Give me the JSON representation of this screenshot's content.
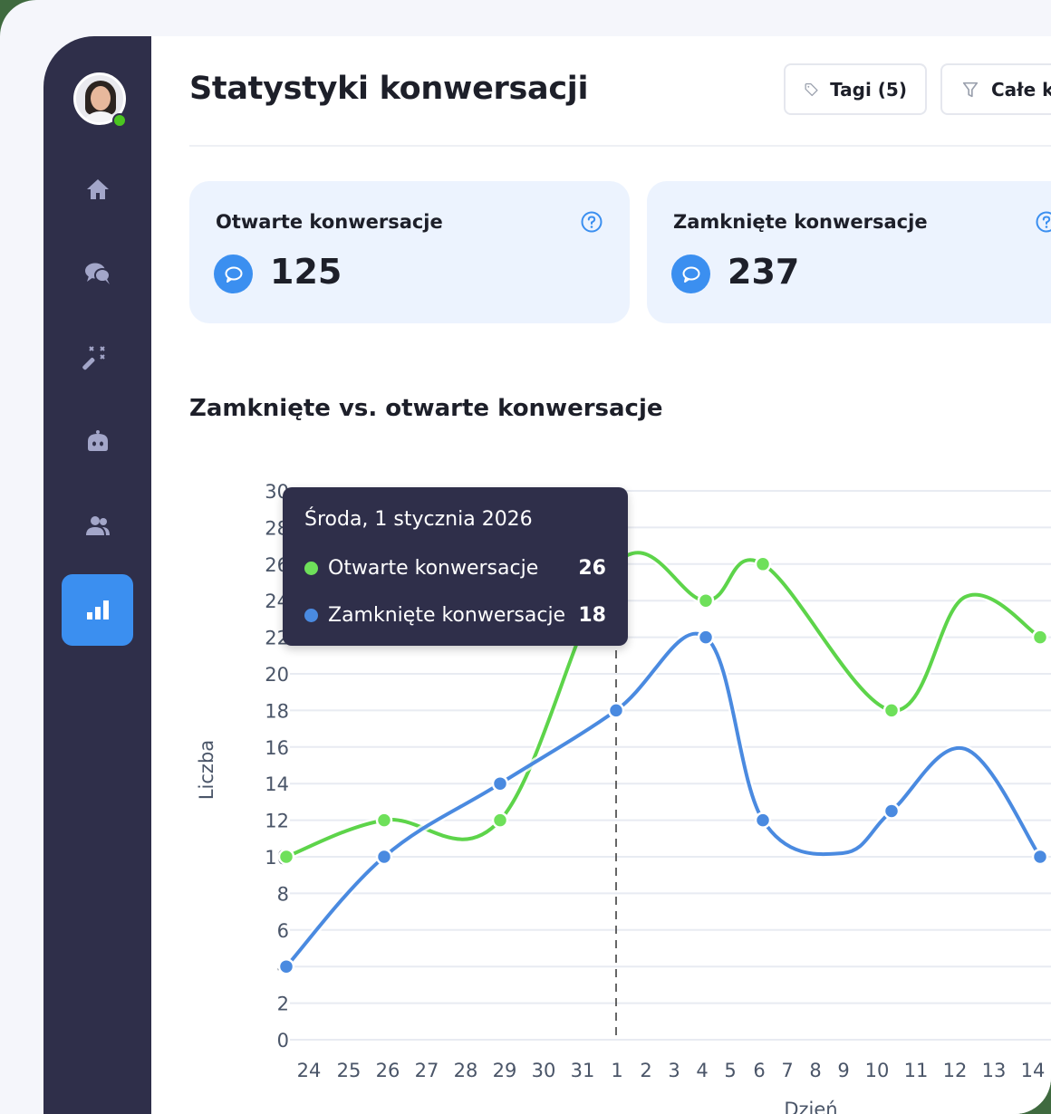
{
  "sidebar": {
    "status": "online",
    "items": [
      {
        "name": "home",
        "icon": "home-icon",
        "active": false
      },
      {
        "name": "conversations",
        "icon": "chat-bubbles-icon",
        "active": false
      },
      {
        "name": "automation",
        "icon": "magic-wand-icon",
        "active": false
      },
      {
        "name": "bot",
        "icon": "bot-icon",
        "active": false
      },
      {
        "name": "users",
        "icon": "users-icon",
        "active": false
      },
      {
        "name": "statistics",
        "icon": "bar-chart-icon",
        "active": true
      }
    ]
  },
  "header": {
    "title": "Statystyki konwersacji",
    "tags_button": "Tagi (5)",
    "filter_button": "Całe k"
  },
  "cards": [
    {
      "title": "Otwarte konwersacje",
      "value": "125"
    },
    {
      "title": "Zamknięte konwersacje",
      "value": "237"
    }
  ],
  "tooltip": {
    "date": "Środa, 1 stycznia 2026",
    "rows": [
      {
        "label": "Otwarte konwersacje",
        "value": "26",
        "color": "#6ee05a"
      },
      {
        "label": "Zamknięte konwersacje",
        "value": "18",
        "color": "#4a8ae0"
      }
    ]
  },
  "colors": {
    "open": "#5dd44a",
    "closed": "#4a8ae0",
    "accent": "#3b8ff0",
    "sidebar": "#2f2f4a"
  },
  "chart_data": {
    "type": "line",
    "title": "Zamknięte vs. otwarte konwersacje",
    "xlabel": "Dzień",
    "ylabel": "Liczba",
    "ylim": [
      0,
      30
    ],
    "yticks": [
      0,
      2,
      4,
      6,
      8,
      10,
      12,
      14,
      16,
      18,
      20,
      22,
      24,
      26,
      28,
      30
    ],
    "categories": [
      "24",
      "25",
      "26",
      "27",
      "28",
      "29",
      "30",
      "31",
      "1",
      "2",
      "3",
      "4",
      "5",
      "6",
      "7",
      "8",
      "9",
      "10",
      "11",
      "12",
      "13",
      "14"
    ],
    "grid": true,
    "legend": "tooltip",
    "highlight": "1",
    "series": [
      {
        "name": "Otwarte konwersacje",
        "points": [
          {
            "x": "24",
            "y": 10
          },
          {
            "x": "26",
            "y": 12
          },
          {
            "x": "29",
            "y": 12
          },
          {
            "x": "1",
            "y": 26
          },
          {
            "x": "4",
            "y": 24
          },
          {
            "x": "6",
            "y": 26
          },
          {
            "x": "10",
            "y": 18
          },
          {
            "x": "14",
            "y": 22
          }
        ]
      },
      {
        "name": "Zamknięte konwersacje",
        "points": [
          {
            "x": "24",
            "y": 4
          },
          {
            "x": "26",
            "y": 10
          },
          {
            "x": "29",
            "y": 14
          },
          {
            "x": "1",
            "y": 18
          },
          {
            "x": "4",
            "y": 22
          },
          {
            "x": "6",
            "y": 12
          },
          {
            "x": "10",
            "y": 12.5
          },
          {
            "x": "14",
            "y": 10
          }
        ]
      }
    ]
  }
}
